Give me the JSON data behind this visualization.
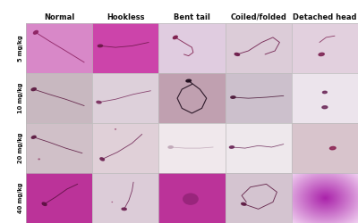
{
  "col_labels": [
    "Normal",
    "Hookless",
    "Bent tail",
    "Coiled/folded",
    "Detached head"
  ],
  "row_labels": [
    "5 mg/kg",
    "10 mg/kg",
    "20 mg/kg",
    "40 mg/kg"
  ],
  "header_fontsize": 6.0,
  "row_label_fontsize": 4.8,
  "grid_rows": 4,
  "grid_cols": 5,
  "cell_bg": [
    [
      "#e088c8",
      "#cc55bb",
      "#e8d0e4",
      "#dcccd8",
      "#e4d0e0"
    ],
    [
      "#c8b8c4",
      "#e0d4de",
      "#c0a0b0",
      "#ccc0cc",
      "#ece4ec"
    ],
    [
      "#d4c0c8",
      "#e4d4dc",
      "#f0e8ec",
      "#eee8ec",
      "#dcccd4"
    ],
    [
      "#c044aa",
      "#dcccd8",
      "#bb44aa",
      "#d4c4d0",
      "#bb44bb"
    ]
  ],
  "border_color": "#bbbbbb",
  "label_color": "#111111",
  "background": "#ffffff",
  "fig_width": 4.0,
  "fig_height": 2.5,
  "dpi": 100
}
